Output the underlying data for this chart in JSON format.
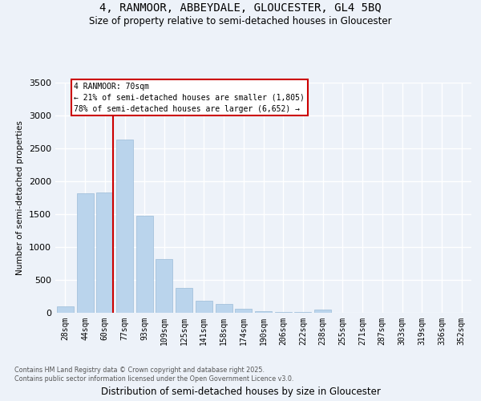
{
  "title_line1": "4, RANMOOR, ABBEYDALE, GLOUCESTER, GL4 5BQ",
  "title_line2": "Size of property relative to semi-detached houses in Gloucester",
  "xlabel": "Distribution of semi-detached houses by size in Gloucester",
  "ylabel": "Number of semi-detached properties",
  "categories": [
    "28sqm",
    "44sqm",
    "60sqm",
    "77sqm",
    "93sqm",
    "109sqm",
    "125sqm",
    "141sqm",
    "158sqm",
    "174sqm",
    "190sqm",
    "206sqm",
    "222sqm",
    "238sqm",
    "255sqm",
    "271sqm",
    "287sqm",
    "303sqm",
    "319sqm",
    "336sqm",
    "352sqm"
  ],
  "values": [
    95,
    1820,
    1830,
    2630,
    1470,
    820,
    380,
    185,
    140,
    55,
    30,
    10,
    10,
    45,
    5,
    5,
    5,
    3,
    2,
    2,
    2
  ],
  "bar_color": "#bad4ec",
  "bar_edge_color": "#9bbcd8",
  "pct_smaller": 21,
  "pct_larger": 78,
  "count_smaller": 1805,
  "count_larger": 6652,
  "vline_color": "#cc0000",
  "vline_x": 2.42,
  "ylim": [
    0,
    3500
  ],
  "yticks": [
    0,
    500,
    1000,
    1500,
    2000,
    2500,
    3000,
    3500
  ],
  "footer_line1": "Contains HM Land Registry data © Crown copyright and database right 2025.",
  "footer_line2": "Contains public sector information licensed under the Open Government Licence v3.0.",
  "background_color": "#edf2f9",
  "grid_color": "#ffffff"
}
